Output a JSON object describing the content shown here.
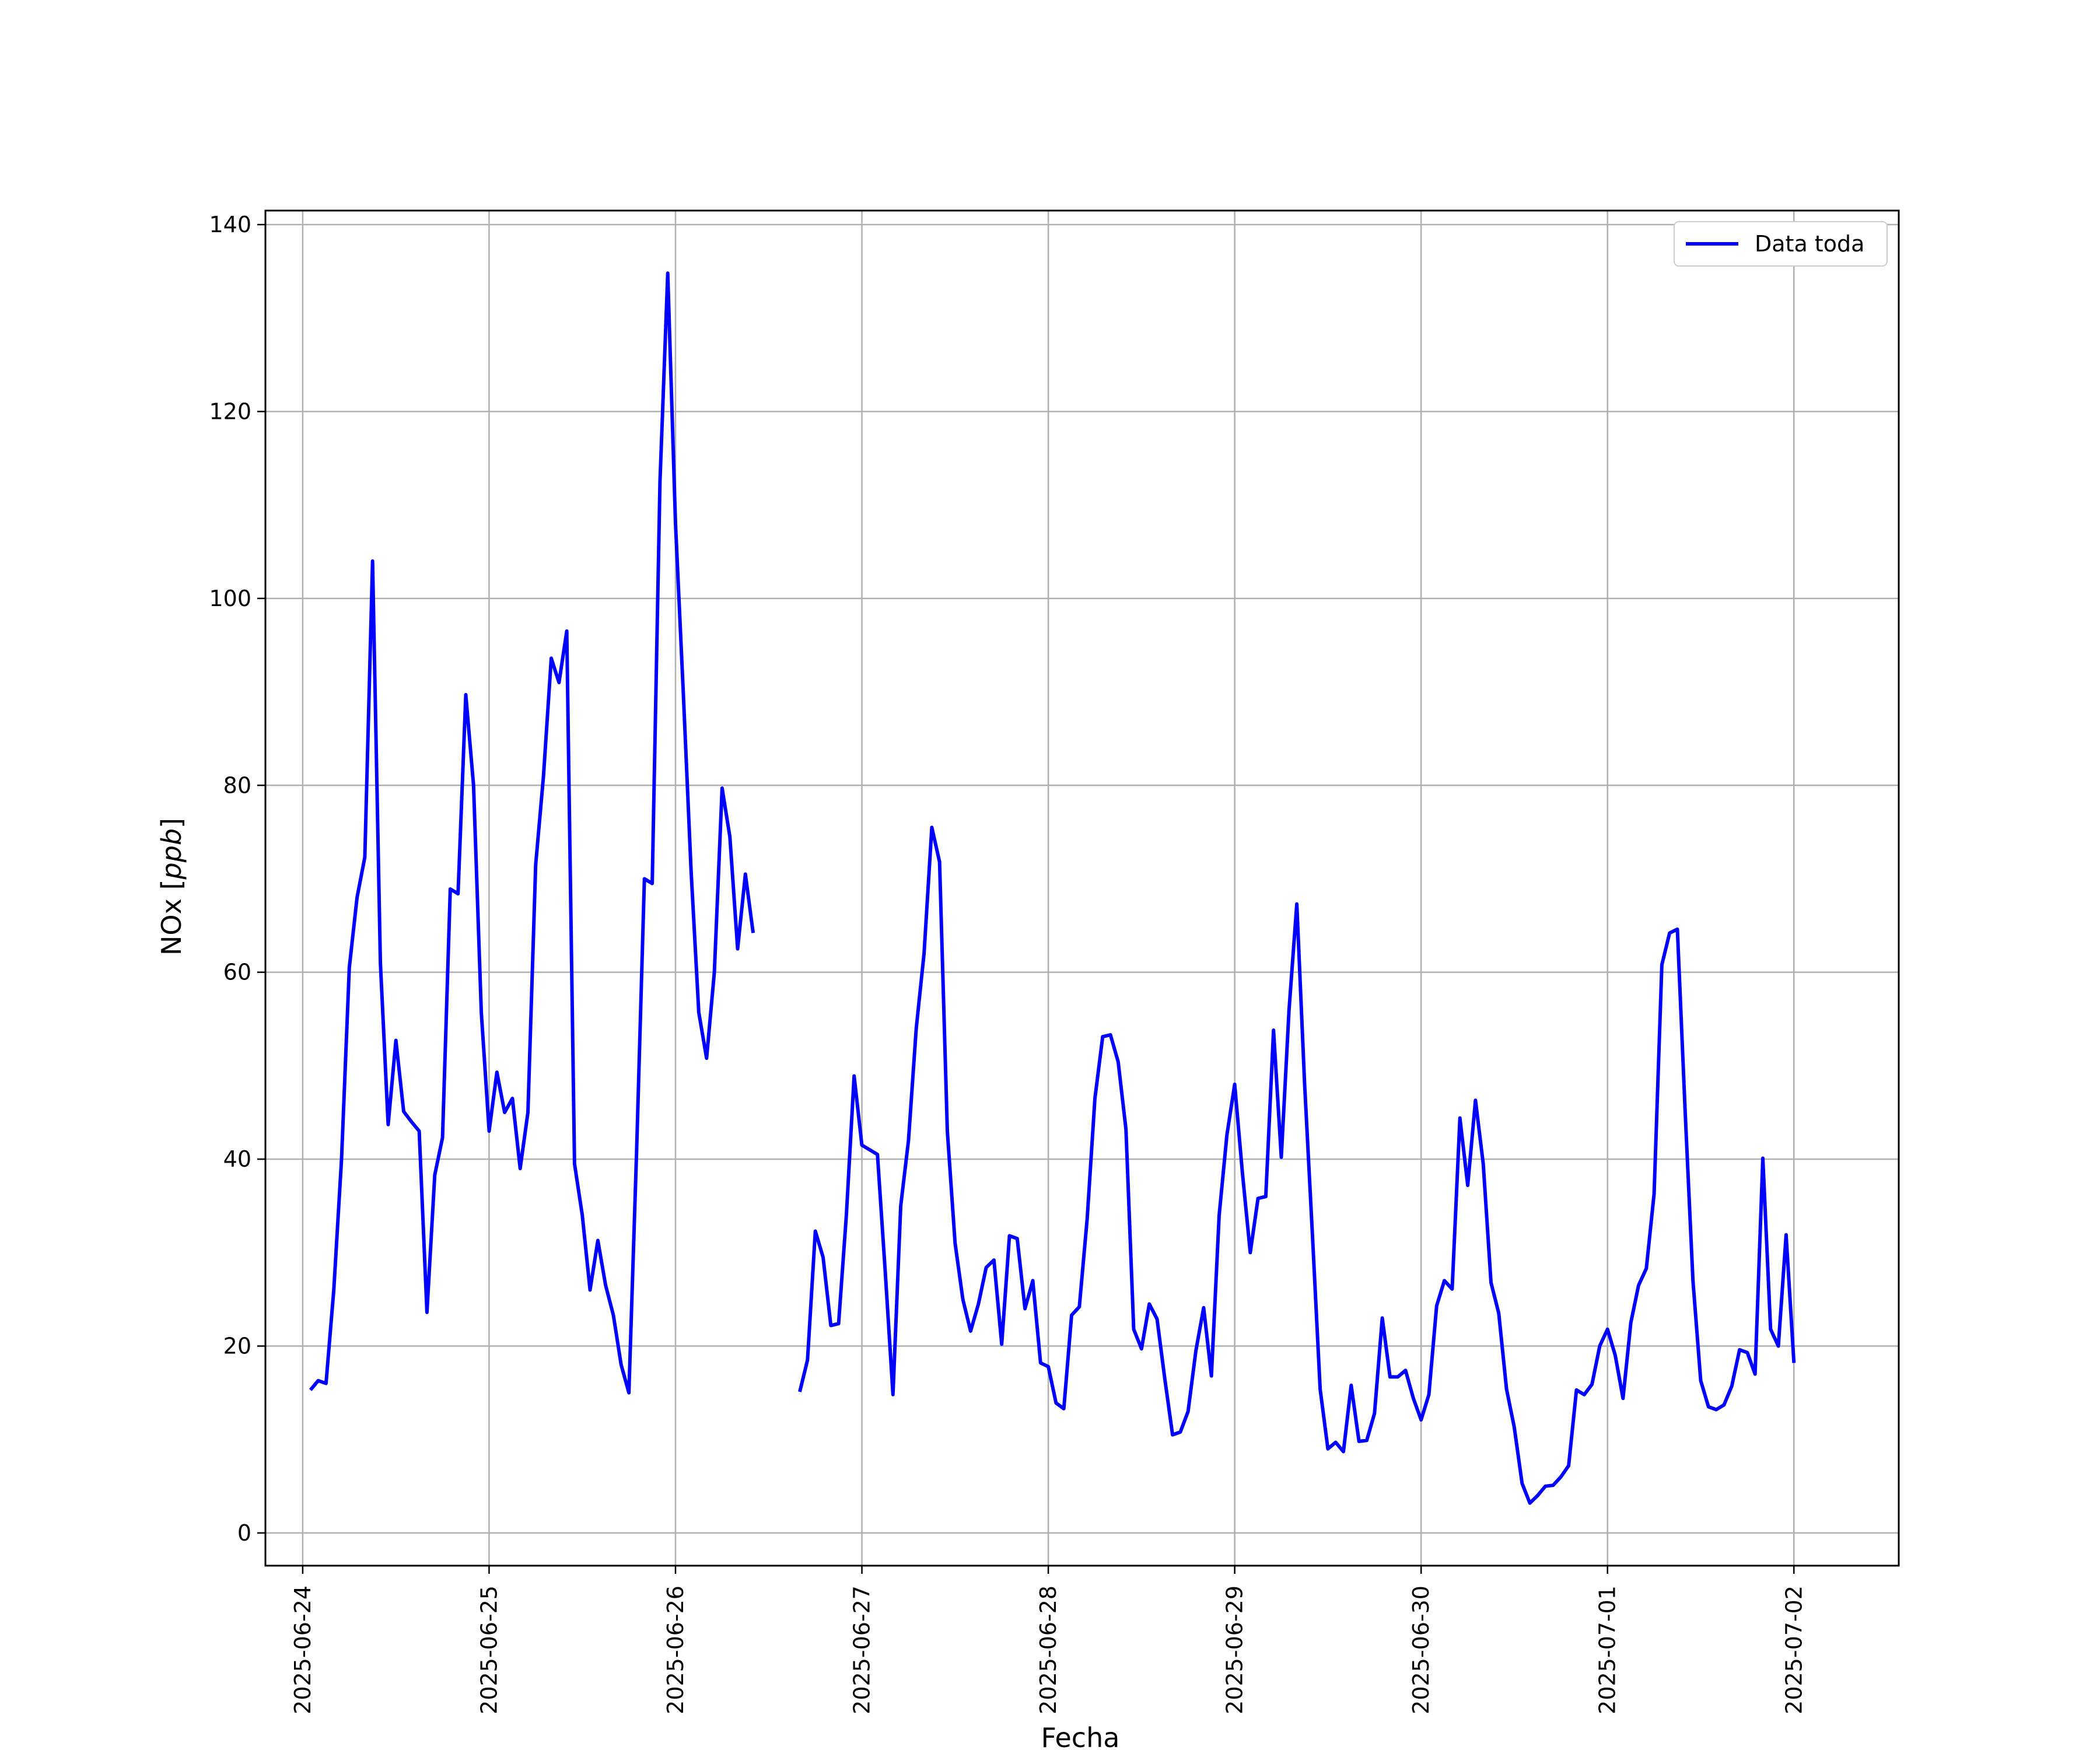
{
  "chart_data": {
    "type": "line",
    "title": "",
    "xlabel": "Fecha",
    "ylabel": "NOx [ppb]",
    "ylabel_text": "NOx ",
    "ylabel_unit": "ppb",
    "xlim": [
      "2025-06-23T19:12",
      "2025-07-02T13:30"
    ],
    "ylim": [
      -3.5,
      141.5
    ],
    "x_ticks": [
      "2025-06-24",
      "2025-06-25",
      "2025-06-26",
      "2025-06-27",
      "2025-06-28",
      "2025-06-29",
      "2025-06-30",
      "2025-07-01",
      "2025-07-02"
    ],
    "y_ticks": [
      0,
      20,
      40,
      60,
      80,
      100,
      120,
      140
    ],
    "grid": true,
    "legend_position": "top-right",
    "series": [
      {
        "name": "Data toda",
        "color": "#0000ff",
        "x": [
          "2025-06-24T01:00",
          "2025-06-24T02:00",
          "2025-06-24T03:00",
          "2025-06-24T04:00",
          "2025-06-24T05:00",
          "2025-06-24T06:00",
          "2025-06-24T07:00",
          "2025-06-24T08:00",
          "2025-06-24T09:00",
          "2025-06-24T10:00",
          "2025-06-24T11:00",
          "2025-06-24T12:00",
          "2025-06-24T13:00",
          "2025-06-24T14:00",
          "2025-06-24T15:00",
          "2025-06-24T16:00",
          "2025-06-24T17:00",
          "2025-06-24T18:00",
          "2025-06-24T19:00",
          "2025-06-24T20:00",
          "2025-06-24T21:00",
          "2025-06-24T22:00",
          "2025-06-24T23:00",
          "2025-06-25T00:00",
          "2025-06-25T01:00",
          "2025-06-25T02:00",
          "2025-06-25T03:00",
          "2025-06-25T04:00",
          "2025-06-25T05:00",
          "2025-06-25T06:00",
          "2025-06-25T07:00",
          "2025-06-25T08:00",
          "2025-06-25T09:00",
          "2025-06-25T10:00",
          "2025-06-25T11:00",
          "2025-06-25T12:00",
          "2025-06-25T13:00",
          "2025-06-25T14:00",
          "2025-06-25T15:00",
          "2025-06-25T16:00",
          "2025-06-25T17:00",
          "2025-06-25T18:00",
          "2025-06-25T19:00",
          "2025-06-25T20:00",
          "2025-06-25T21:00",
          "2025-06-25T22:00",
          "2025-06-25T23:00",
          "2025-06-26T00:00",
          "2025-06-26T01:00",
          "2025-06-26T02:00",
          "2025-06-26T03:00",
          "2025-06-26T04:00",
          "2025-06-26T05:00",
          "2025-06-26T06:00",
          "2025-06-26T07:00",
          "2025-06-26T08:00",
          "2025-06-26T09:00",
          "2025-06-26T10:00",
          null,
          "2025-06-26T16:00",
          "2025-06-26T17:00",
          "2025-06-26T18:00",
          "2025-06-26T19:00",
          "2025-06-26T20:00",
          "2025-06-26T21:00",
          "2025-06-26T22:00",
          "2025-06-26T23:00",
          "2025-06-27T00:00",
          "2025-06-27T01:00",
          "2025-06-27T02:00",
          "2025-06-27T03:00",
          "2025-06-27T04:00",
          "2025-06-27T05:00",
          "2025-06-27T06:00",
          "2025-06-27T07:00",
          "2025-06-27T08:00",
          "2025-06-27T09:00",
          "2025-06-27T10:00",
          "2025-06-27T11:00",
          "2025-06-27T12:00",
          "2025-06-27T13:00",
          "2025-06-27T14:00",
          "2025-06-27T15:00",
          "2025-06-27T16:00",
          "2025-06-27T17:00",
          "2025-06-27T18:00",
          "2025-06-27T19:00",
          "2025-06-27T20:00",
          "2025-06-27T21:00",
          "2025-06-27T22:00",
          "2025-06-27T23:00",
          "2025-06-28T00:00",
          "2025-06-28T01:00",
          "2025-06-28T02:00",
          "2025-06-28T03:00",
          "2025-06-28T04:00",
          "2025-06-28T05:00",
          "2025-06-28T06:00",
          "2025-06-28T07:00",
          "2025-06-28T08:00",
          "2025-06-28T09:00",
          "2025-06-28T10:00",
          "2025-06-28T11:00",
          "2025-06-28T12:00",
          "2025-06-28T13:00",
          "2025-06-28T14:00",
          "2025-06-28T15:00",
          "2025-06-28T16:00",
          "2025-06-28T17:00",
          "2025-06-28T18:00",
          "2025-06-28T19:00",
          "2025-06-28T20:00",
          "2025-06-28T21:00",
          "2025-06-28T22:00",
          "2025-06-28T23:00",
          "2025-06-29T00:00",
          "2025-06-29T01:00",
          "2025-06-29T02:00",
          "2025-06-29T03:00",
          "2025-06-29T04:00",
          "2025-06-29T05:00",
          "2025-06-29T06:00",
          "2025-06-29T07:00",
          "2025-06-29T08:00",
          "2025-06-29T09:00",
          "2025-06-29T10:00",
          "2025-06-29T11:00",
          "2025-06-29T12:00",
          "2025-06-29T13:00",
          "2025-06-29T14:00",
          "2025-06-29T15:00",
          "2025-06-29T16:00",
          "2025-06-29T17:00",
          "2025-06-29T18:00",
          "2025-06-29T19:00",
          "2025-06-29T20:00",
          "2025-06-29T21:00",
          "2025-06-29T22:00",
          "2025-06-29T23:00",
          "2025-06-30T00:00",
          "2025-06-30T01:00",
          "2025-06-30T02:00",
          "2025-06-30T03:00",
          "2025-06-30T04:00",
          "2025-06-30T05:00",
          "2025-06-30T06:00",
          "2025-06-30T07:00",
          "2025-06-30T08:00",
          "2025-06-30T09:00",
          "2025-06-30T10:00",
          "2025-06-30T11:00",
          "2025-06-30T12:00",
          "2025-06-30T13:00",
          "2025-06-30T14:00",
          "2025-06-30T15:00",
          "2025-06-30T16:00",
          "2025-06-30T17:00",
          "2025-06-30T18:00",
          "2025-06-30T19:00",
          "2025-06-30T20:00",
          "2025-06-30T21:00",
          "2025-06-30T22:00",
          "2025-06-30T23:00",
          "2025-07-01T00:00",
          "2025-07-01T01:00",
          "2025-07-01T02:00",
          "2025-07-01T03:00",
          "2025-07-01T04:00",
          "2025-07-01T05:00",
          "2025-07-01T06:00",
          "2025-07-01T07:00",
          "2025-07-01T08:00",
          "2025-07-01T09:00",
          "2025-07-01T10:00",
          "2025-07-01T11:00",
          "2025-07-01T12:00",
          "2025-07-01T13:00",
          "2025-07-01T14:00",
          "2025-07-01T15:00",
          "2025-07-01T16:00",
          "2025-07-01T17:00",
          "2025-07-01T18:00",
          "2025-07-01T19:00",
          "2025-07-01T20:00",
          "2025-07-01T21:00",
          "2025-07-01T22:00",
          "2025-07-01T23:00",
          "2025-07-02T00:00"
        ],
        "values": [
          15.3,
          16.3,
          16.0,
          26.0,
          40.0,
          60.5,
          68.0,
          72.3,
          104.0,
          61.0,
          43.7,
          52.7,
          45.1,
          44.0,
          43.0,
          23.6,
          38.3,
          42.3,
          68.9,
          68.4,
          89.7,
          80.0,
          55.7,
          43.0,
          49.3,
          45.0,
          46.5,
          39.0,
          45.0,
          71.5,
          81.0,
          93.6,
          91.0,
          96.5,
          39.5,
          34.0,
          26.0,
          31.3,
          26.5,
          23.3,
          18.0,
          15.0,
          41.0,
          70.0,
          69.5,
          112.5,
          134.8,
          108.0,
          90.0,
          71.0,
          55.7,
          50.8,
          60.0,
          79.7,
          74.5,
          62.5,
          70.5,
          64.2,
          null,
          15.1,
          18.5,
          32.3,
          29.5,
          22.2,
          22.4,
          34.0,
          48.9,
          41.5,
          41.0,
          40.5,
          28.0,
          14.8,
          35.0,
          42.0,
          54.0,
          62.0,
          75.5,
          71.8,
          43.0,
          31.0,
          25.0,
          21.6,
          24.5,
          28.4,
          29.2,
          20.2,
          31.8,
          31.5,
          24.0,
          27.0,
          18.2,
          17.8,
          13.9,
          13.3,
          23.3,
          24.2,
          33.6,
          46.5,
          53.1,
          53.3,
          50.4,
          43.2,
          21.8,
          19.7,
          24.5,
          22.9,
          16.5,
          10.5,
          10.8,
          13.0,
          19.5,
          24.1,
          16.8,
          34.0,
          42.6,
          48.0,
          38.5,
          30.0,
          35.8,
          36.0,
          53.8,
          40.2,
          56.0,
          67.3,
          48.0,
          32.0,
          15.4,
          9.0,
          9.7,
          8.7,
          15.8,
          9.8,
          9.9,
          12.8,
          23.0,
          16.7,
          16.7,
          17.4,
          14.4,
          12.1,
          14.8,
          24.3,
          27.0,
          26.1,
          44.4,
          37.2,
          46.3,
          39.5,
          26.8,
          23.5,
          15.4,
          11.3,
          5.3,
          3.2,
          4.0,
          5.0,
          5.1,
          6.0,
          7.2,
          15.3,
          14.8,
          15.9,
          20.0,
          21.8,
          19.0,
          14.4,
          22.5,
          26.5,
          28.3,
          36.3,
          60.8,
          64.2,
          64.6,
          45.0,
          27.0,
          16.3,
          13.5,
          13.2,
          13.7,
          15.7,
          19.6,
          19.3,
          17.0,
          40.1,
          21.8,
          20.0,
          31.9,
          18.2
        ]
      }
    ]
  }
}
